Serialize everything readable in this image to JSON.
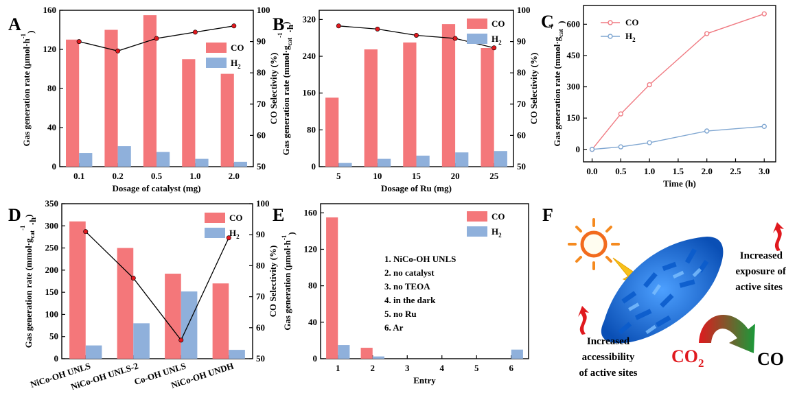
{
  "colors": {
    "co_bar": "#f4777a",
    "h2_bar": "#8fb0db",
    "selectivity_line": "#000000",
    "time_co": "#f07a82",
    "time_h2": "#7fa6d1",
    "co2_text": "#e0191e",
    "co_product_text": "#1a9a3a",
    "sheet": "#1d6fd6"
  },
  "legend": {
    "co": "CO",
    "h2_main": "H",
    "h2_sub": "2"
  },
  "chart_data": [
    {
      "panel": "A",
      "type": "bar",
      "categories": [
        "0.1",
        "0.2",
        "0.5",
        "1.0",
        "2.0"
      ],
      "series": [
        {
          "name": "CO",
          "values": [
            130,
            140,
            155,
            110,
            95
          ]
        },
        {
          "name": "H2",
          "values": [
            14,
            21,
            15,
            8,
            5
          ]
        }
      ],
      "line": {
        "name": "CO Selectivity",
        "axis": "right",
        "values": [
          90,
          87,
          91,
          93,
          95
        ]
      },
      "xlabel": "Dosage of catalyst (mg)",
      "ylabel": "Gas generation rate (μmol·h",
      "ylabel_sup": "-1",
      "ylabel_end": ")",
      "y2label": "CO Selectivity (%)",
      "ylim": [
        0,
        160
      ],
      "yticks": [
        0,
        40,
        80,
        120,
        160
      ],
      "y2lim": [
        50,
        100
      ],
      "y2ticks": [
        50,
        60,
        70,
        80,
        90,
        100
      ],
      "legend_position": "right"
    },
    {
      "panel": "B",
      "type": "bar",
      "categories": [
        "5",
        "10",
        "15",
        "20",
        "25"
      ],
      "series": [
        {
          "name": "CO",
          "values": [
            150,
            255,
            270,
            310,
            258
          ]
        },
        {
          "name": "H2",
          "values": [
            8,
            17,
            24,
            31,
            34
          ]
        }
      ],
      "line": {
        "name": "CO Selectivity",
        "axis": "right",
        "values": [
          95,
          94,
          92,
          91,
          88
        ]
      },
      "xlabel": "Dosage of Ru (mg)",
      "ylabel": "Gas generation rate (mmol·g",
      "ylabel_sub": "cat",
      "ylabel_sup": "-1",
      "ylabel_mid": "·h",
      "ylabel_end": ")",
      "y2label": "CO Selectivity (%)",
      "ylim": [
        0,
        340
      ],
      "yticks": [
        0,
        80,
        160,
        240,
        320
      ],
      "y2lim": [
        50,
        100
      ],
      "y2ticks": [
        50,
        60,
        70,
        80,
        90,
        100
      ],
      "legend_position": "top-right"
    },
    {
      "panel": "C",
      "type": "line",
      "x": [
        0.0,
        0.5,
        1.0,
        2.0,
        3.0
      ],
      "series": [
        {
          "name": "CO",
          "values": [
            0,
            170,
            310,
            555,
            650
          ]
        },
        {
          "name": "H2",
          "values": [
            0,
            12,
            32,
            88,
            110
          ]
        }
      ],
      "xlabel": "Time (h)",
      "ylabel": "Gas generation rate (mmol·g",
      "ylabel_sub": "cat",
      "ylabel_sup": "-1",
      "ylabel_end": ")",
      "xlim": [
        -0.15,
        3.2
      ],
      "xticks": [
        "0.0",
        "0.5",
        "1.0",
        "1.5",
        "2.0",
        "2.5",
        "3.0"
      ],
      "ylim": [
        -60,
        690
      ],
      "yticks": [
        0,
        150,
        300,
        450,
        600
      ],
      "legend_position": "top-left"
    },
    {
      "panel": "D",
      "type": "bar",
      "categories": [
        "NiCo-OH UNLS",
        "NiCo-OH UNLS-2",
        "Co-OH UNLS",
        "NiCo-OH UNDH"
      ],
      "series": [
        {
          "name": "CO",
          "values": [
            310,
            250,
            192,
            170
          ]
        },
        {
          "name": "H2",
          "values": [
            30,
            80,
            152,
            20
          ]
        }
      ],
      "line": {
        "name": "CO Selectivity",
        "axis": "right",
        "values": [
          91,
          76,
          56,
          89
        ]
      },
      "xlabel": "",
      "ylabel": "Gas generation rate (mmol·g",
      "ylabel_sub": "cat",
      "ylabel_sup": "-1",
      "ylabel_mid": "·h",
      "ylabel_end": ")",
      "y2label": "CO Selectivity (%)",
      "ylim": [
        0,
        350
      ],
      "yticks": [
        0,
        50,
        100,
        150,
        200,
        250,
        300,
        350
      ],
      "y2lim": [
        50,
        100
      ],
      "y2ticks": [
        50,
        60,
        70,
        80,
        90,
        100
      ],
      "legend_position": "top-right"
    },
    {
      "panel": "E",
      "type": "bar",
      "categories": [
        "1",
        "2",
        "3",
        "4",
        "5",
        "6"
      ],
      "series": [
        {
          "name": "CO",
          "values": [
            155,
            12,
            0,
            0,
            0,
            0
          ]
        },
        {
          "name": "H2",
          "values": [
            15,
            2.5,
            0,
            0,
            0,
            10
          ]
        }
      ],
      "xlabel": "Entry",
      "ylabel": "Gas generation (μmol·h",
      "ylabel_sup": "-1",
      "ylabel_end": ")",
      "ylim": [
        0,
        170
      ],
      "yticks": [
        0,
        40,
        80,
        120,
        160
      ],
      "entries": [
        "1. NiCo-OH UNLS",
        "2. no catalyst",
        "3. no TEOA",
        "4. in the dark",
        "5. no Ru",
        "6. Ar"
      ],
      "legend_position": "top-right"
    }
  ],
  "panel_labels": [
    "A",
    "B",
    "C",
    "D",
    "E",
    "F"
  ],
  "panel_f": {
    "label": "F",
    "text_exposure": [
      "Increased",
      "exposure of",
      "active sites"
    ],
    "text_access": [
      "Increased",
      "accessibility",
      "of active sites"
    ],
    "co2_main": "CO",
    "co2_sub": "2",
    "product": "CO"
  }
}
